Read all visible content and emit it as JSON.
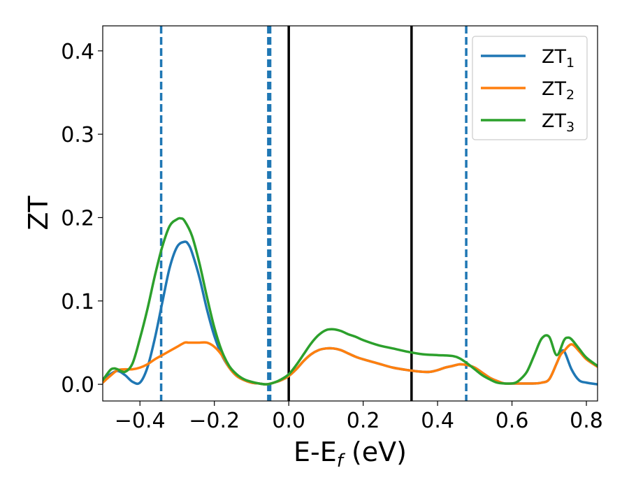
{
  "chart_data": {
    "type": "line",
    "title": "",
    "xlabel": "E-E",
    "xlabel_subscript": "f",
    "xlabel_suffix": " (eV)",
    "ylabel": "ZT",
    "xlim": [
      -0.5,
      0.83
    ],
    "ylim": [
      -0.02,
      0.43
    ],
    "grid": false,
    "legend_position": "top-right",
    "x_ticks": [
      -0.4,
      -0.2,
      0.0,
      0.2,
      0.4,
      0.6,
      0.8
    ],
    "x_tick_labels": [
      "−0.4",
      "−0.2",
      "0.0",
      "0.2",
      "0.4",
      "0.6",
      "0.8"
    ],
    "y_ticks": [
      0.0,
      0.1,
      0.2,
      0.3,
      0.4
    ],
    "y_tick_labels": [
      "0.0",
      "0.1",
      "0.2",
      "0.3",
      "0.4"
    ],
    "vlines": [
      {
        "x": -0.343,
        "style": "dashed",
        "color": "#1f77b4"
      },
      {
        "x": -0.055,
        "style": "dashed",
        "color": "#1f77b4"
      },
      {
        "x": -0.05,
        "style": "dashed",
        "color": "#1f77b4"
      },
      {
        "x": 0.0,
        "style": "solid",
        "color": "#000000"
      },
      {
        "x": 0.33,
        "style": "solid",
        "color": "#000000"
      },
      {
        "x": 0.477,
        "style": "dashed",
        "color": "#1f77b4"
      }
    ],
    "series": [
      {
        "name": "ZT",
        "name_subscript": "1",
        "color": "#1f77b4",
        "x": [
          -0.5,
          -0.48,
          -0.46,
          -0.44,
          -0.42,
          -0.4,
          -0.38,
          -0.36,
          -0.34,
          -0.32,
          -0.3,
          -0.28,
          -0.27,
          -0.26,
          -0.24,
          -0.22,
          -0.2,
          -0.18,
          -0.16,
          -0.14,
          -0.12,
          -0.1,
          -0.08,
          -0.06,
          -0.04,
          -0.02,
          0.0,
          0.02,
          0.04,
          0.06,
          0.08,
          0.1,
          0.12,
          0.14,
          0.16,
          0.18,
          0.2,
          0.24,
          0.28,
          0.32,
          0.36,
          0.38,
          0.4,
          0.42,
          0.44,
          0.46,
          0.48,
          0.5,
          0.52,
          0.54,
          0.56,
          0.58,
          0.6,
          0.62,
          0.64,
          0.66,
          0.68,
          0.7,
          0.72,
          0.73,
          0.74,
          0.76,
          0.78,
          0.8,
          0.83
        ],
        "values": [
          0.005,
          0.012,
          0.016,
          0.011,
          0.003,
          0.002,
          0.02,
          0.055,
          0.098,
          0.14,
          0.165,
          0.171,
          0.168,
          0.158,
          0.128,
          0.09,
          0.058,
          0.035,
          0.02,
          0.01,
          0.005,
          0.002,
          0.001,
          0.0,
          0.002,
          0.005,
          0.01,
          0.018,
          0.028,
          0.036,
          0.041,
          0.043,
          0.043,
          0.041,
          0.037,
          0.033,
          0.03,
          0.025,
          0.02,
          0.017,
          0.015,
          0.015,
          0.017,
          0.02,
          0.022,
          0.024,
          0.023,
          0.02,
          0.014,
          0.008,
          0.004,
          0.001,
          0.001,
          0.001,
          0.001,
          0.001,
          0.002,
          0.006,
          0.025,
          0.035,
          0.04,
          0.018,
          0.005,
          0.002,
          0.0
        ]
      },
      {
        "name": "ZT",
        "name_subscript": "2",
        "color": "#ff7f0e",
        "x": [
          -0.5,
          -0.48,
          -0.46,
          -0.44,
          -0.42,
          -0.4,
          -0.38,
          -0.36,
          -0.34,
          -0.32,
          -0.3,
          -0.28,
          -0.27,
          -0.26,
          -0.24,
          -0.22,
          -0.2,
          -0.18,
          -0.16,
          -0.14,
          -0.12,
          -0.1,
          -0.08,
          -0.06,
          -0.04,
          -0.02,
          0.0,
          0.02,
          0.04,
          0.06,
          0.08,
          0.1,
          0.12,
          0.14,
          0.16,
          0.18,
          0.2,
          0.24,
          0.28,
          0.32,
          0.36,
          0.38,
          0.4,
          0.42,
          0.44,
          0.46,
          0.48,
          0.5,
          0.52,
          0.54,
          0.56,
          0.58,
          0.6,
          0.62,
          0.64,
          0.66,
          0.68,
          0.7,
          0.72,
          0.73,
          0.74,
          0.76,
          0.78,
          0.8,
          0.83
        ],
        "values": [
          0.002,
          0.01,
          0.017,
          0.018,
          0.018,
          0.02,
          0.024,
          0.03,
          0.035,
          0.04,
          0.045,
          0.05,
          0.05,
          0.05,
          0.05,
          0.05,
          0.045,
          0.035,
          0.02,
          0.01,
          0.005,
          0.002,
          0.001,
          0.0,
          0.002,
          0.005,
          0.01,
          0.018,
          0.028,
          0.036,
          0.041,
          0.043,
          0.043,
          0.041,
          0.037,
          0.033,
          0.03,
          0.025,
          0.02,
          0.017,
          0.015,
          0.015,
          0.017,
          0.02,
          0.022,
          0.024,
          0.023,
          0.02,
          0.014,
          0.008,
          0.004,
          0.001,
          0.001,
          0.001,
          0.001,
          0.001,
          0.002,
          0.006,
          0.025,
          0.035,
          0.04,
          0.048,
          0.04,
          0.03,
          0.021
        ]
      },
      {
        "name": "ZT",
        "name_subscript": "3",
        "color": "#2ca02c",
        "x": [
          -0.5,
          -0.48,
          -0.47,
          -0.46,
          -0.44,
          -0.42,
          -0.4,
          -0.38,
          -0.36,
          -0.34,
          -0.32,
          -0.3,
          -0.29,
          -0.28,
          -0.26,
          -0.24,
          -0.22,
          -0.2,
          -0.18,
          -0.16,
          -0.14,
          -0.12,
          -0.1,
          -0.08,
          -0.06,
          -0.04,
          -0.02,
          0.0,
          0.02,
          0.04,
          0.06,
          0.08,
          0.1,
          0.12,
          0.14,
          0.16,
          0.18,
          0.2,
          0.24,
          0.28,
          0.32,
          0.36,
          0.4,
          0.44,
          0.46,
          0.48,
          0.5,
          0.52,
          0.54,
          0.56,
          0.58,
          0.6,
          0.61,
          0.62,
          0.64,
          0.66,
          0.68,
          0.7,
          0.72,
          0.74,
          0.75,
          0.76,
          0.78,
          0.8,
          0.83
        ],
        "values": [
          0.005,
          0.017,
          0.019,
          0.018,
          0.015,
          0.025,
          0.055,
          0.09,
          0.13,
          0.165,
          0.19,
          0.198,
          0.199,
          0.196,
          0.178,
          0.145,
          0.105,
          0.068,
          0.04,
          0.022,
          0.012,
          0.006,
          0.003,
          0.001,
          0.0,
          0.002,
          0.006,
          0.012,
          0.023,
          0.036,
          0.049,
          0.059,
          0.065,
          0.066,
          0.064,
          0.06,
          0.057,
          0.053,
          0.047,
          0.043,
          0.039,
          0.036,
          0.035,
          0.034,
          0.031,
          0.025,
          0.018,
          0.011,
          0.006,
          0.002,
          0.001,
          0.001,
          0.002,
          0.005,
          0.015,
          0.035,
          0.055,
          0.057,
          0.035,
          0.053,
          0.056,
          0.054,
          0.043,
          0.032,
          0.022
        ]
      }
    ]
  }
}
